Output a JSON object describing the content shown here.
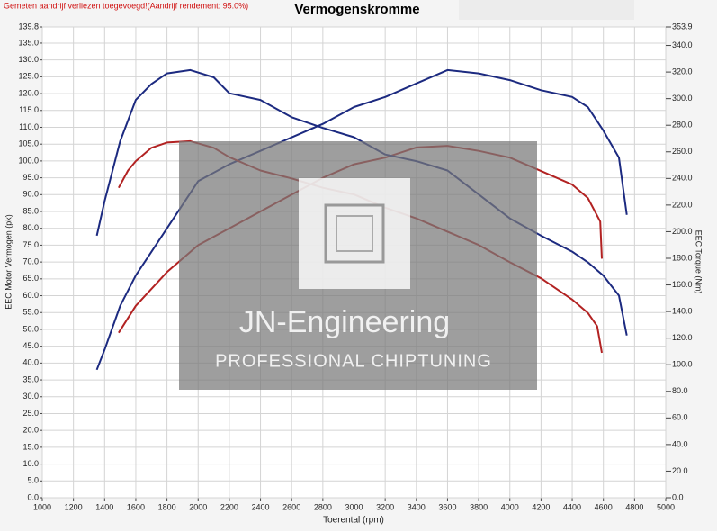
{
  "chart_data": {
    "type": "line",
    "title": "Vermogenskromme",
    "note": "Gemeten aandrijf verliezen toegevoegd!(Aandrijf rendement: 95.0%)",
    "xlabel": "Toerental (rpm)",
    "ylabel": "EEC Motor Vermogen (pk)",
    "y2label": "EEC Torque (Nm)",
    "watermark": [
      "JN-Engineering",
      "PROFESSIONAL CHIPTUNING"
    ],
    "grid": true,
    "xlim": [
      1000,
      5000
    ],
    "xticks": [
      1000,
      1200,
      1400,
      1600,
      1800,
      2000,
      2200,
      2400,
      2600,
      2800,
      3000,
      3200,
      3400,
      3600,
      3800,
      4000,
      4200,
      4400,
      4600,
      4800,
      5000
    ],
    "ylim": [
      0,
      139.8
    ],
    "yticks": [
      {
        "value": 0,
        "label": "0.0"
      },
      {
        "value": 5,
        "label": "5.0"
      },
      {
        "value": 10,
        "label": "10.0"
      },
      {
        "value": 15,
        "label": "15.0"
      },
      {
        "value": 20,
        "label": "20.0"
      },
      {
        "value": 25,
        "label": "25.0"
      },
      {
        "value": 30,
        "label": "30.0"
      },
      {
        "value": 35,
        "label": "35.0"
      },
      {
        "value": 40,
        "label": "40.0"
      },
      {
        "value": 45,
        "label": "45.0"
      },
      {
        "value": 50,
        "label": "50.0"
      },
      {
        "value": 55,
        "label": "55.0"
      },
      {
        "value": 60,
        "label": "60.0"
      },
      {
        "value": 65,
        "label": "65.0"
      },
      {
        "value": 70,
        "label": "70.0"
      },
      {
        "value": 75,
        "label": "75.0"
      },
      {
        "value": 80,
        "label": "80.0"
      },
      {
        "value": 85,
        "label": "85.0"
      },
      {
        "value": 90,
        "label": "90.0"
      },
      {
        "value": 95,
        "label": "95.0"
      },
      {
        "value": 100,
        "label": "100.0"
      },
      {
        "value": 105,
        "label": "105.0"
      },
      {
        "value": 110,
        "label": "110.0"
      },
      {
        "value": 115,
        "label": "115.0"
      },
      {
        "value": 120,
        "label": "120.0"
      },
      {
        "value": 125,
        "label": "125.0"
      },
      {
        "value": 130,
        "label": "130.0"
      },
      {
        "value": 135,
        "label": "135.0"
      },
      139.8
    ],
    "y2lim": [
      0,
      353.9
    ],
    "y2ticks": [
      {
        "value": 0,
        "label": "0.0"
      },
      {
        "value": 20,
        "label": "20.0"
      },
      {
        "value": 40,
        "label": "40.0"
      },
      {
        "value": 60,
        "label": "60.0"
      },
      {
        "value": 80,
        "label": "80.0"
      },
      {
        "value": 100,
        "label": "100.0"
      },
      {
        "value": 120,
        "label": "120.0"
      },
      {
        "value": 140,
        "label": "140.0"
      },
      {
        "value": 160,
        "label": "160.0"
      },
      {
        "value": 180,
        "label": "180.0"
      },
      {
        "value": 200,
        "label": "200.0"
      },
      {
        "value": 220,
        "label": "220.0"
      },
      {
        "value": 240,
        "label": "240.0"
      },
      {
        "value": 260,
        "label": "260.0"
      },
      {
        "value": 280,
        "label": "280.0"
      },
      {
        "value": 300,
        "label": "300.0"
      },
      {
        "value": 320,
        "label": "320.0"
      },
      {
        "value": 340,
        "label": "340.0"
      },
      353.9
    ],
    "series": [
      {
        "color": "#1c2a80",
        "x": [
          1350,
          1400,
          1500,
          1600,
          1800,
          2000,
          2200,
          2400,
          2600,
          2800,
          3000,
          3200,
          3400,
          3600,
          3800,
          4000,
          4200,
          4400,
          4500,
          4600,
          4700,
          4750
        ],
        "values": [
          38,
          44,
          57,
          66,
          80,
          94,
          99,
          103,
          107,
          111,
          116,
          119,
          123,
          127,
          126,
          124,
          121,
          119,
          116,
          109,
          101,
          84
        ]
      },
      {
        "color": "#b22222",
        "x": [
          1490,
          1600,
          1800,
          2000,
          2200,
          2400,
          2600,
          2800,
          3000,
          3200,
          3400,
          3600,
          3800,
          4000,
          4200,
          4400,
          4500,
          4580,
          4590
        ],
        "values": [
          49,
          57,
          67,
          75,
          80,
          85,
          90,
          95,
          99,
          101,
          104,
          104.5,
          103,
          101,
          97,
          93,
          89,
          82,
          71
        ]
      },
      {
        "color": "#1c2a80",
        "axis": "y2",
        "x": [
          1350,
          1400,
          1500,
          1600,
          1700,
          1800,
          1950,
          2100,
          2200,
          2400,
          2600,
          2800,
          3000,
          3200,
          3400,
          3600,
          3800,
          4000,
          4200,
          4400,
          4500,
          4600,
          4700,
          4750
        ],
        "values": [
          197,
          223,
          268,
          299,
          311,
          319,
          321.5,
          316,
          304,
          299,
          286,
          278,
          271,
          258,
          253,
          246,
          228,
          210,
          197,
          185,
          177,
          167,
          152,
          122
        ]
      },
      {
        "color": "#b22222",
        "axis": "y2",
        "x": [
          1490,
          1550,
          1600,
          1700,
          1800,
          1950,
          2100,
          2200,
          2400,
          2600,
          2800,
          3000,
          3200,
          3400,
          3600,
          3800,
          4000,
          4200,
          4400,
          4500,
          4560,
          4590
        ],
        "values": [
          233,
          246,
          253,
          263,
          267,
          268,
          263,
          256,
          246,
          240,
          233,
          228,
          218,
          210,
          200,
          190,
          177,
          165,
          149,
          139,
          129,
          109
        ]
      }
    ]
  }
}
